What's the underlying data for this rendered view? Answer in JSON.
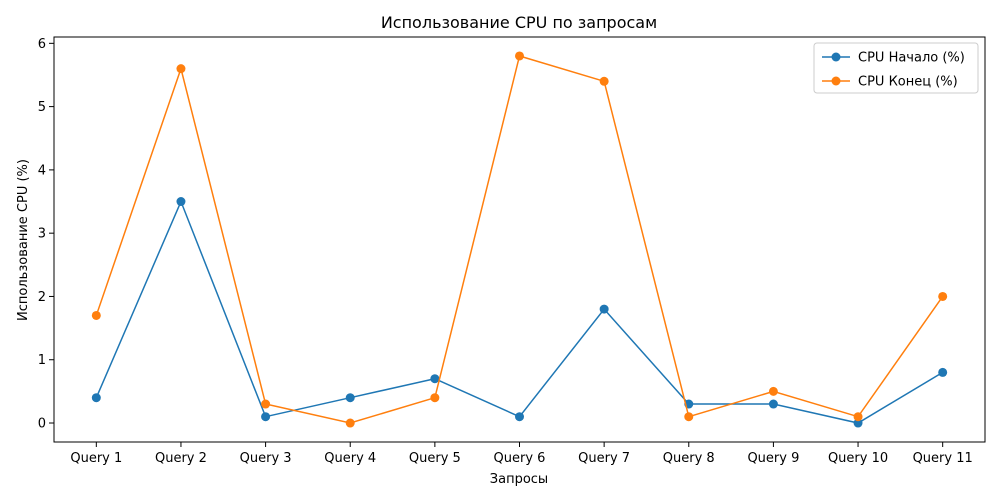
{
  "chart_data": {
    "type": "line",
    "title": "Использование CPU по запросам",
    "xlabel": "Запросы",
    "ylabel": "Использование CPU (%)",
    "categories": [
      "Query 1",
      "Query 2",
      "Query 3",
      "Query 4",
      "Query 5",
      "Query 6",
      "Query 7",
      "Query 8",
      "Query 9",
      "Query 10",
      "Query 11"
    ],
    "ylim": [
      -0.3,
      6.1
    ],
    "yticks": [
      0,
      1,
      2,
      3,
      4,
      5,
      6
    ],
    "grid": false,
    "legend_position": "top-right",
    "series": [
      {
        "name": "CPU Начало (%)",
        "color": "#1f77b4",
        "marker": "circle",
        "values": [
          0.4,
          3.5,
          0.1,
          0.4,
          0.7,
          0.1,
          1.8,
          0.3,
          0.3,
          0.0,
          0.8
        ]
      },
      {
        "name": "CPU Конец (%)",
        "color": "#ff7f0e",
        "marker": "circle",
        "values": [
          1.7,
          5.6,
          0.3,
          0.0,
          0.4,
          5.8,
          5.4,
          0.1,
          0.5,
          0.1,
          2.0
        ]
      }
    ]
  }
}
